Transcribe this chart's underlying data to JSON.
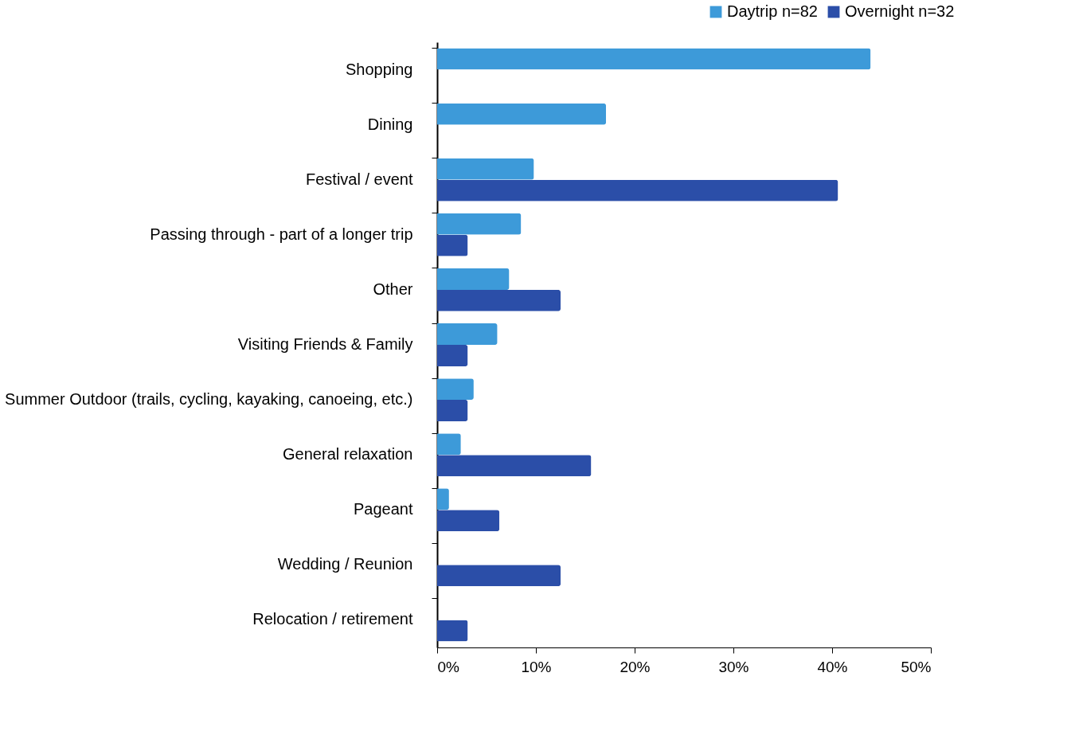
{
  "chart_data": {
    "type": "bar",
    "orientation": "horizontal",
    "categories": [
      "Shopping",
      "Dining",
      "Festival / event",
      "Passing through - part of a longer trip",
      "Other",
      "Visiting Friends & Family",
      "Summer Outdoor (trails, cycling, kayaking, canoeing, etc.)",
      "General relaxation",
      "Pageant",
      "Wedding / Reunion",
      "Relocation / retirement"
    ],
    "series": [
      {
        "name": "Daytrip n=82",
        "color": "#3d9ad9",
        "values": [
          43.9,
          17.1,
          9.8,
          8.5,
          7.3,
          6.1,
          3.7,
          2.4,
          1.2,
          0,
          0
        ]
      },
      {
        "name": "Overnight n=32",
        "color": "#2b4ea8",
        "values": [
          0,
          0,
          40.6,
          3.1,
          12.5,
          3.1,
          3.1,
          15.6,
          6.3,
          12.5,
          3.1
        ]
      }
    ],
    "xlim": [
      0,
      50
    ],
    "xticks": [
      {
        "value": 0,
        "label": "0%"
      },
      {
        "value": 10,
        "label": "10%"
      },
      {
        "value": 20,
        "label": "20%"
      },
      {
        "value": 30,
        "label": "30%"
      },
      {
        "value": 40,
        "label": "40%"
      },
      {
        "value": 50,
        "label": "50%"
      }
    ],
    "grid": false,
    "legend": "top right"
  }
}
